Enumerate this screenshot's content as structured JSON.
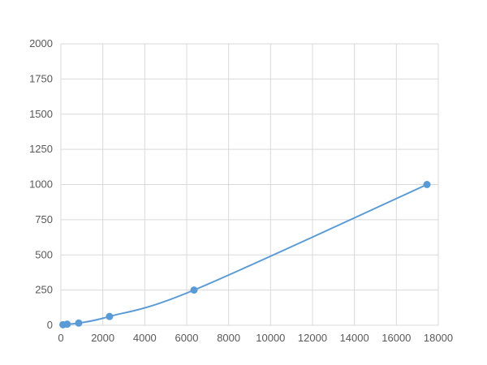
{
  "chart_data": {
    "type": "scatter",
    "title": "",
    "xlabel": "",
    "ylabel": "",
    "xlim": [
      0,
      18000
    ],
    "ylim": [
      0,
      2000
    ],
    "x_ticks": [
      0,
      2000,
      4000,
      6000,
      8000,
      10000,
      12000,
      14000,
      16000,
      18000
    ],
    "y_ticks": [
      0,
      250,
      500,
      750,
      1000,
      1250,
      1500,
      1750,
      2000
    ],
    "grid": true,
    "legend": "none",
    "smooth_line": true,
    "color": "#5b9bd5",
    "series": [
      {
        "x": [
          100,
          300,
          850,
          2320,
          6350,
          17460
        ],
        "y": [
          3.9,
          7.8,
          15.6,
          62.5,
          250,
          1000
        ]
      }
    ]
  }
}
